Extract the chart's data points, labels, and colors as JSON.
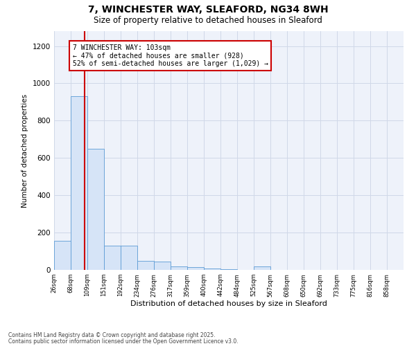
{
  "title1": "7, WINCHESTER WAY, SLEAFORD, NG34 8WH",
  "title2": "Size of property relative to detached houses in Sleaford",
  "xlabel": "Distribution of detached houses by size in Sleaford",
  "ylabel": "Number of detached properties",
  "bin_labels": [
    "26sqm",
    "68sqm",
    "109sqm",
    "151sqm",
    "192sqm",
    "234sqm",
    "276sqm",
    "317sqm",
    "359sqm",
    "400sqm",
    "442sqm",
    "484sqm",
    "525sqm",
    "567sqm",
    "608sqm",
    "650sqm",
    "692sqm",
    "733sqm",
    "775sqm",
    "816sqm",
    "858sqm"
  ],
  "bin_edges": [
    26,
    68,
    109,
    151,
    192,
    234,
    276,
    317,
    359,
    400,
    442,
    484,
    525,
    567,
    608,
    650,
    692,
    733,
    775,
    816,
    858
  ],
  "bar_heights": [
    155,
    930,
    650,
    130,
    130,
    50,
    45,
    20,
    15,
    8,
    5,
    0,
    18,
    0,
    0,
    0,
    0,
    0,
    0,
    0
  ],
  "bar_color": "#d6e4f7",
  "bar_edge_color": "#5b9bd5",
  "property_line_x": 103,
  "annotation_text": "7 WINCHESTER WAY: 103sqm\n← 47% of detached houses are smaller (928)\n52% of semi-detached houses are larger (1,029) →",
  "annotation_box_color": "#ffffff",
  "annotation_box_edge": "#cc0000",
  "vline_color": "#cc0000",
  "ylim": [
    0,
    1280
  ],
  "yticks": [
    0,
    200,
    400,
    600,
    800,
    1000,
    1200
  ],
  "grid_color": "#d0d8e8",
  "background_color": "#eef2fa",
  "footer1": "Contains HM Land Registry data © Crown copyright and database right 2025.",
  "footer2": "Contains public sector information licensed under the Open Government Licence v3.0."
}
